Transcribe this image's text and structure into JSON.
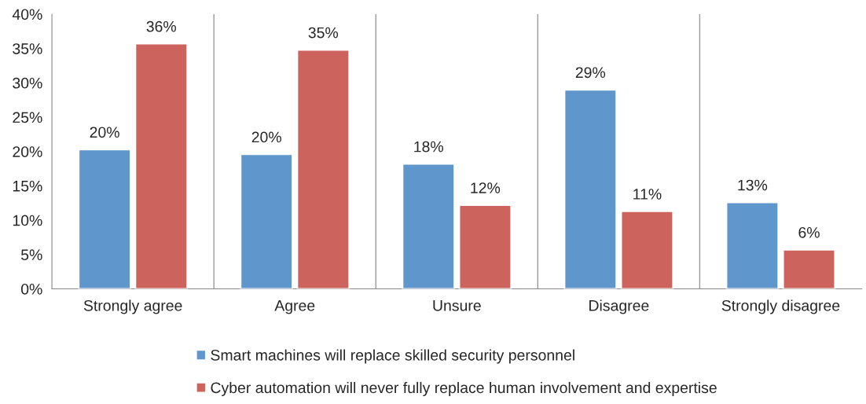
{
  "chart_data": {
    "type": "bar",
    "categories": [
      "Strongly agree",
      "Agree",
      "Unsure",
      "Disagree",
      "Strongly disagree"
    ],
    "series": [
      {
        "name": "Smart machines will replace skilled security personnel",
        "color": "#5f96cb",
        "values": [
          20.3,
          19.6,
          18.2,
          29.0,
          12.6
        ],
        "value_labels": [
          "20%",
          "20%",
          "18%",
          "29%",
          "13%"
        ]
      },
      {
        "name": "Cyber automation will never fully replace human involvement and expertise",
        "color": "#cc635d",
        "values": [
          35.7,
          34.8,
          12.2,
          11.3,
          5.7
        ],
        "value_labels": [
          "36%",
          "35%",
          "12%",
          "11%",
          "6%"
        ]
      }
    ],
    "ylim": [
      0,
      40
    ],
    "yticks": [
      {
        "value": 0,
        "label": "0%"
      },
      {
        "value": 5,
        "label": "5%"
      },
      {
        "value": 10,
        "label": "10%"
      },
      {
        "value": 15,
        "label": "15%"
      },
      {
        "value": 20,
        "label": "20%"
      },
      {
        "value": 25,
        "label": "25%"
      },
      {
        "value": 30,
        "label": "30%"
      },
      {
        "value": 35,
        "label": "35%"
      },
      {
        "value": 40,
        "label": "40%"
      }
    ],
    "grid": "x",
    "legend": "bottom"
  }
}
